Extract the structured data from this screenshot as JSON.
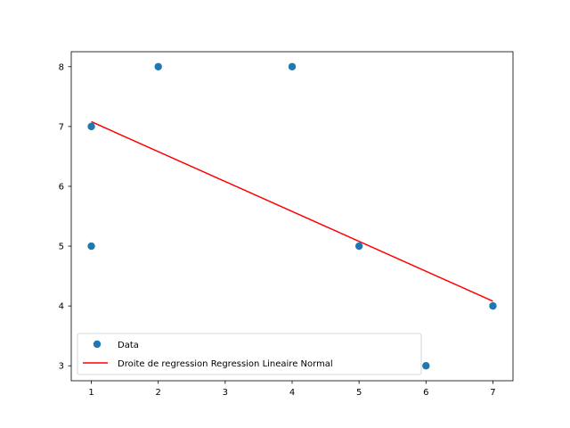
{
  "chart_data": {
    "type": "scatter",
    "title": "",
    "xlabel": "",
    "ylabel": "",
    "xlim": [
      0.7,
      7.3
    ],
    "ylim": [
      2.75,
      8.25
    ],
    "xticks": [
      1,
      2,
      3,
      4,
      5,
      6,
      7
    ],
    "yticks": [
      3,
      4,
      5,
      6,
      7,
      8
    ],
    "grid": false,
    "legend_position": "lower-left",
    "series": [
      {
        "name": "Data",
        "kind": "scatter",
        "color": "#1f77b4",
        "points": [
          {
            "x": 1,
            "y": 7
          },
          {
            "x": 1,
            "y": 5
          },
          {
            "x": 2,
            "y": 8
          },
          {
            "x": 4,
            "y": 8
          },
          {
            "x": 5,
            "y": 5
          },
          {
            "x": 6,
            "y": 3
          },
          {
            "x": 7,
            "y": 4
          }
        ]
      },
      {
        "name": "Droite de regression Regression Lineaire Normal",
        "kind": "line",
        "color": "#ff0000",
        "points": [
          {
            "x": 1,
            "y": 7.08
          },
          {
            "x": 7,
            "y": 4.08
          }
        ]
      }
    ]
  }
}
